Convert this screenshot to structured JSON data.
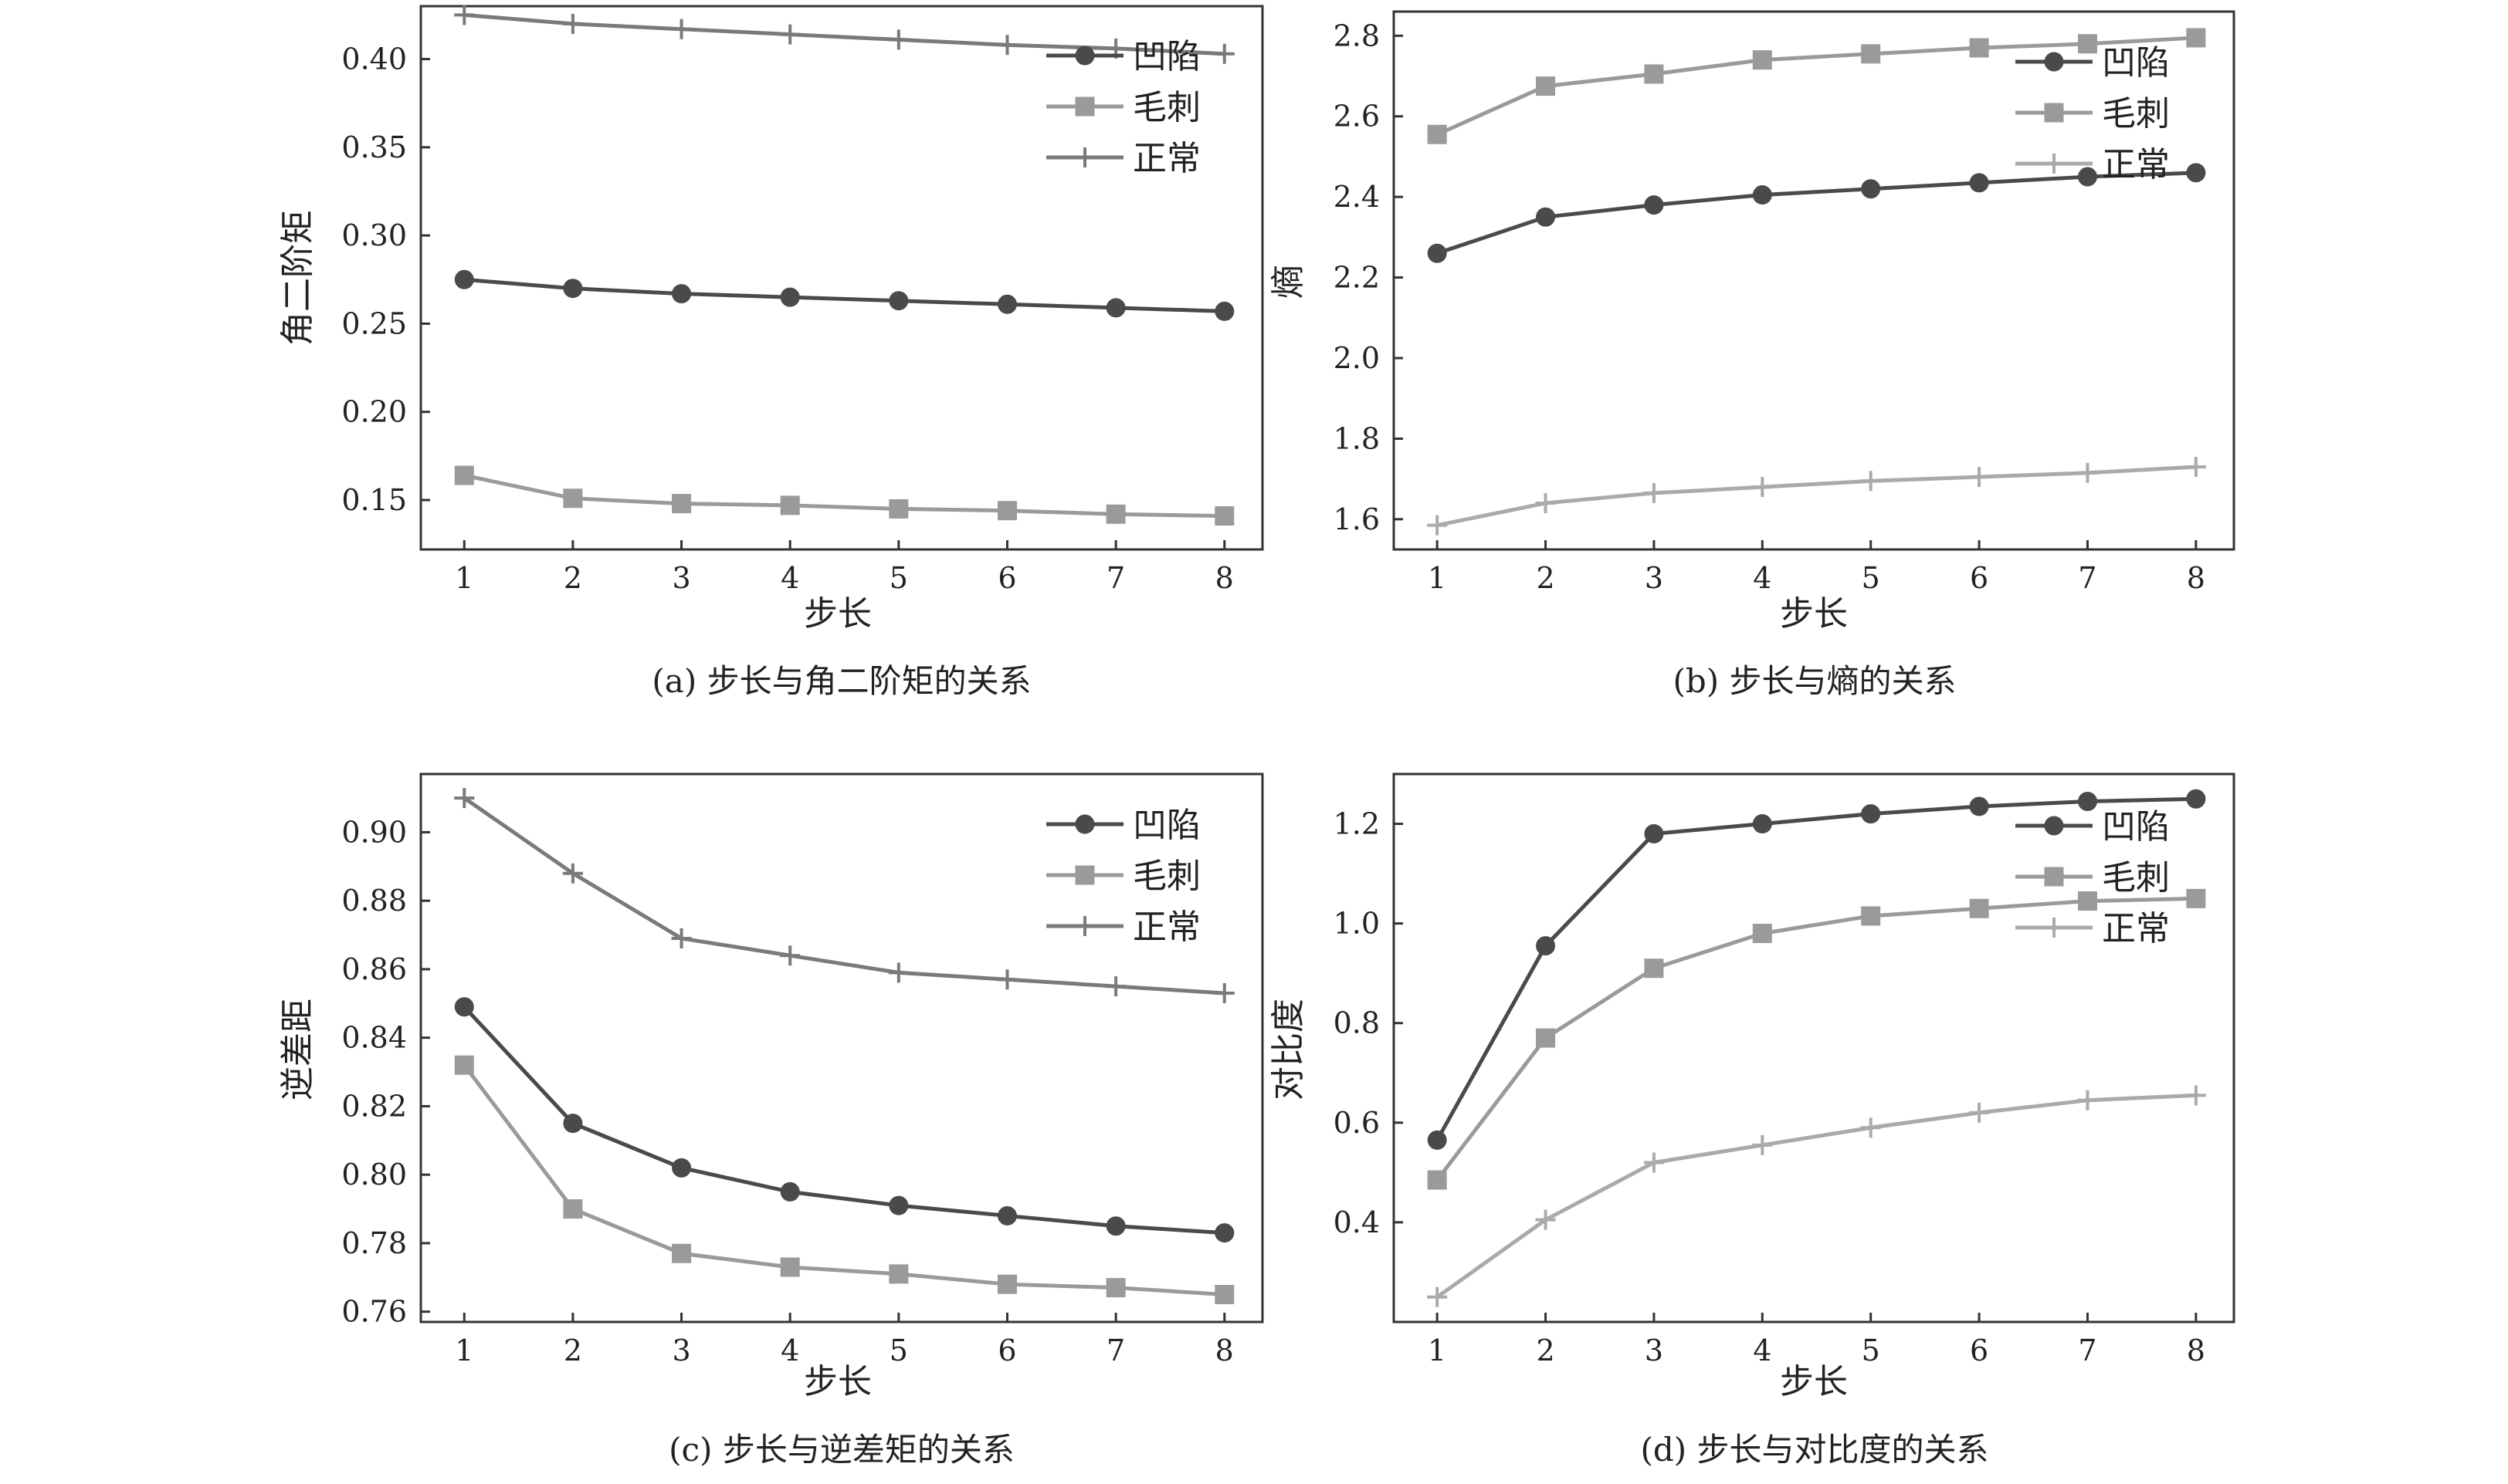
{
  "chart_data": [
    {
      "type": "line",
      "caption": "(a) 步长与角二阶矩的关系",
      "xlabel": "步长",
      "ylabel": "角二阶矩",
      "x": [
        1,
        2,
        3,
        4,
        5,
        6,
        7,
        8
      ],
      "xlim": [
        0.6,
        8.35
      ],
      "ylim": [
        0.122,
        0.43
      ],
      "yticks": [
        "0.15",
        "0.20",
        "0.25",
        "0.30",
        "0.35",
        "0.40"
      ],
      "grid": false,
      "legend": "top-right",
      "series": [
        {
          "name": "凹陷",
          "marker": "circle",
          "color": "#4a4a4a",
          "values": [
            0.275,
            0.27,
            0.267,
            0.265,
            0.263,
            0.261,
            0.259,
            0.257
          ]
        },
        {
          "name": "毛刺",
          "marker": "square",
          "color": "#9a9a9a",
          "values": [
            0.164,
            0.151,
            0.148,
            0.147,
            0.145,
            0.144,
            0.142,
            0.141
          ]
        },
        {
          "name": "正常",
          "marker": "plus",
          "color": "#7a7a7a",
          "values": [
            0.425,
            0.42,
            0.417,
            0.414,
            0.411,
            0.408,
            0.406,
            0.403
          ]
        }
      ]
    },
    {
      "type": "line",
      "caption": "(b) 步长与熵的关系",
      "xlabel": "步长",
      "ylabel": "熵",
      "x": [
        1,
        2,
        3,
        4,
        5,
        6,
        7,
        8
      ],
      "xlim": [
        0.6,
        8.35
      ],
      "ylim": [
        1.525,
        2.86
      ],
      "yticks": [
        "1.6",
        "1.8",
        "2.0",
        "2.2",
        "2.4",
        "2.6",
        "2.8"
      ],
      "grid": false,
      "legend": "top-right",
      "series": [
        {
          "name": "凹陷",
          "marker": "circle",
          "color": "#4a4a4a",
          "values": [
            2.26,
            2.35,
            2.38,
            2.405,
            2.42,
            2.435,
            2.45,
            2.46
          ]
        },
        {
          "name": "毛刺",
          "marker": "square",
          "color": "#9a9a9a",
          "values": [
            2.555,
            2.675,
            2.705,
            2.74,
            2.755,
            2.77,
            2.78,
            2.795
          ]
        },
        {
          "name": "正常",
          "marker": "plus",
          "color": "#aaaaaa",
          "values": [
            1.585,
            1.64,
            1.665,
            1.68,
            1.695,
            1.705,
            1.715,
            1.73
          ]
        }
      ]
    },
    {
      "type": "line",
      "caption": "(c) 步长与逆差矩的关系",
      "xlabel": "步长",
      "ylabel": "逆差距",
      "x": [
        1,
        2,
        3,
        4,
        5,
        6,
        7,
        8
      ],
      "xlim": [
        0.6,
        8.35
      ],
      "ylim": [
        0.757,
        0.917
      ],
      "yticks": [
        "0.76",
        "0.78",
        "0.80",
        "0.82",
        "0.84",
        "0.86",
        "0.88",
        "0.90"
      ],
      "grid": false,
      "legend": "top-right",
      "series": [
        {
          "name": "凹陷",
          "marker": "circle",
          "color": "#4a4a4a",
          "values": [
            0.849,
            0.815,
            0.802,
            0.795,
            0.791,
            0.788,
            0.785,
            0.783
          ]
        },
        {
          "name": "毛刺",
          "marker": "square",
          "color": "#9a9a9a",
          "values": [
            0.832,
            0.79,
            0.777,
            0.773,
            0.771,
            0.768,
            0.767,
            0.765
          ]
        },
        {
          "name": "正常",
          "marker": "plus",
          "color": "#7a7a7a",
          "values": [
            0.91,
            0.888,
            0.869,
            0.864,
            0.859,
            0.857,
            0.855,
            0.853
          ]
        }
      ]
    },
    {
      "type": "line",
      "caption": "(d) 步长与对比度的关系",
      "xlabel": "步长",
      "ylabel": "对比度",
      "x": [
        1,
        2,
        3,
        4,
        5,
        6,
        7,
        8
      ],
      "xlim": [
        0.6,
        8.35
      ],
      "ylim": [
        0.2,
        1.3
      ],
      "yticks": [
        "0.4",
        "0.6",
        "0.8",
        "1.0",
        "1.2"
      ],
      "grid": false,
      "legend": "top-right",
      "series": [
        {
          "name": "凹陷",
          "marker": "circle",
          "color": "#4a4a4a",
          "values": [
            0.565,
            0.955,
            1.18,
            1.2,
            1.22,
            1.235,
            1.245,
            1.25
          ]
        },
        {
          "name": "毛刺",
          "marker": "square",
          "color": "#9a9a9a",
          "values": [
            0.485,
            0.77,
            0.91,
            0.98,
            1.015,
            1.03,
            1.045,
            1.05
          ]
        },
        {
          "name": "正常",
          "marker": "plus",
          "color": "#aaaaaa",
          "values": [
            0.25,
            0.405,
            0.52,
            0.555,
            0.59,
            0.62,
            0.645,
            0.655
          ]
        }
      ]
    }
  ]
}
